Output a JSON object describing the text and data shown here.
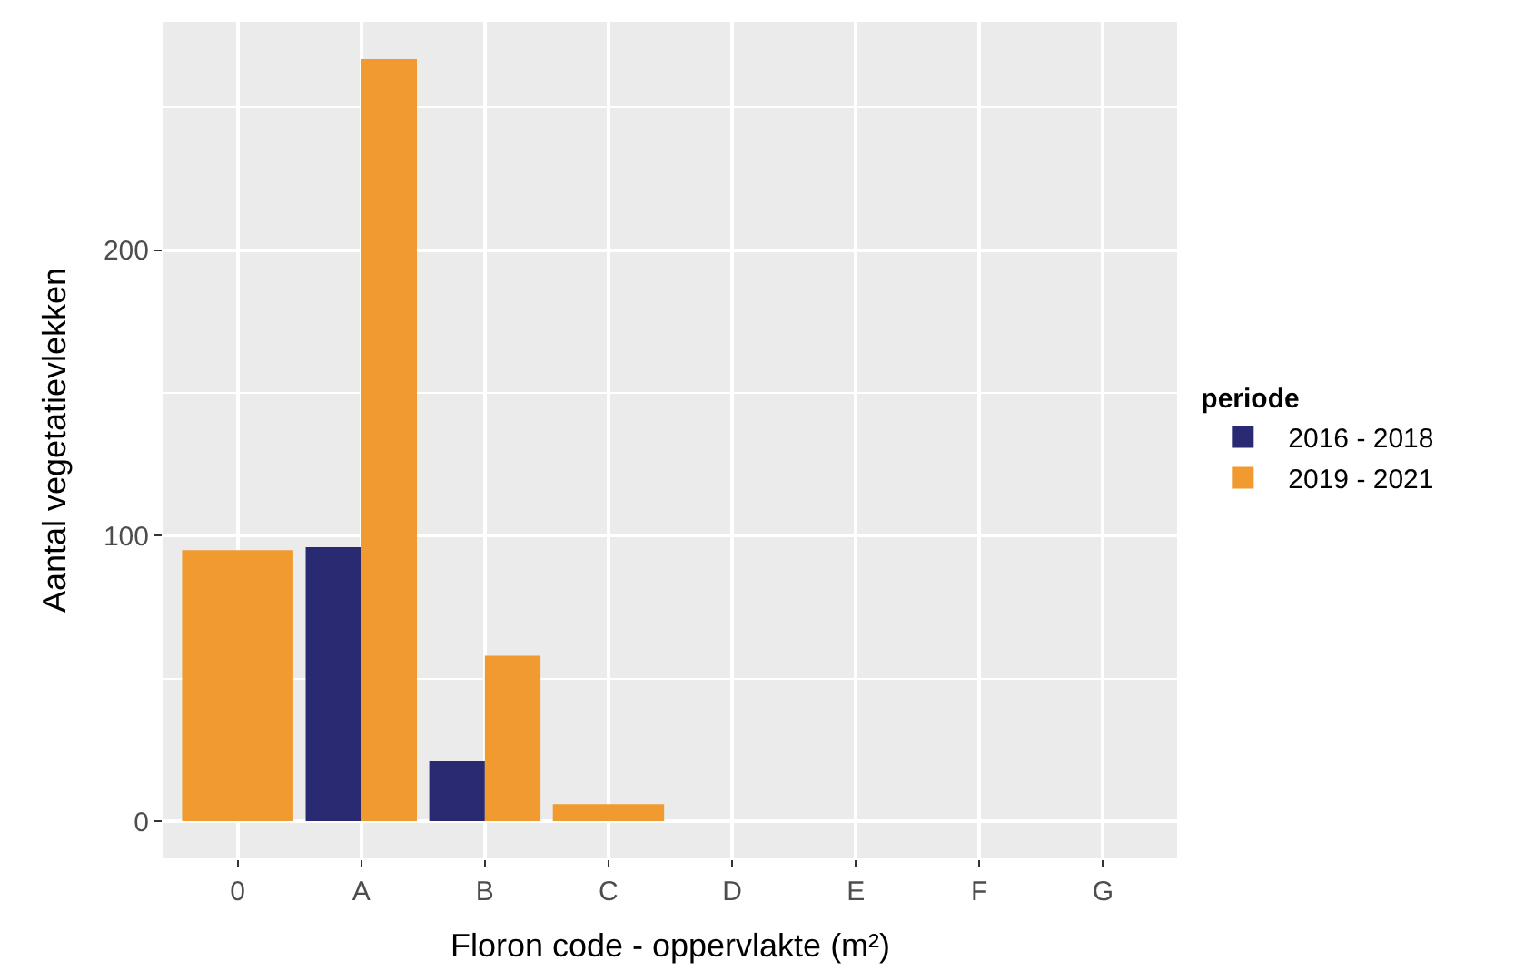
{
  "chart_data": {
    "type": "bar",
    "xlabel": "Floron code - oppervlakte (m²)",
    "ylabel": "Aantal vegetatievlekken",
    "legend_title": "periode",
    "categories": [
      "0",
      "A",
      "B",
      "C",
      "D",
      "E",
      "F",
      "G"
    ],
    "series": [
      {
        "name": "2016 - 2018",
        "color": "#2a2a72",
        "values": [
          null,
          96,
          21,
          null,
          null,
          null,
          null,
          null
        ]
      },
      {
        "name": "2019 - 2021",
        "color": "#f09a30",
        "values": [
          95,
          267,
          58,
          6,
          null,
          null,
          null,
          null
        ]
      }
    ],
    "ylim": [
      -13,
      280
    ],
    "yticks": [
      0,
      100,
      200
    ],
    "grid": true,
    "legend": "right"
  }
}
